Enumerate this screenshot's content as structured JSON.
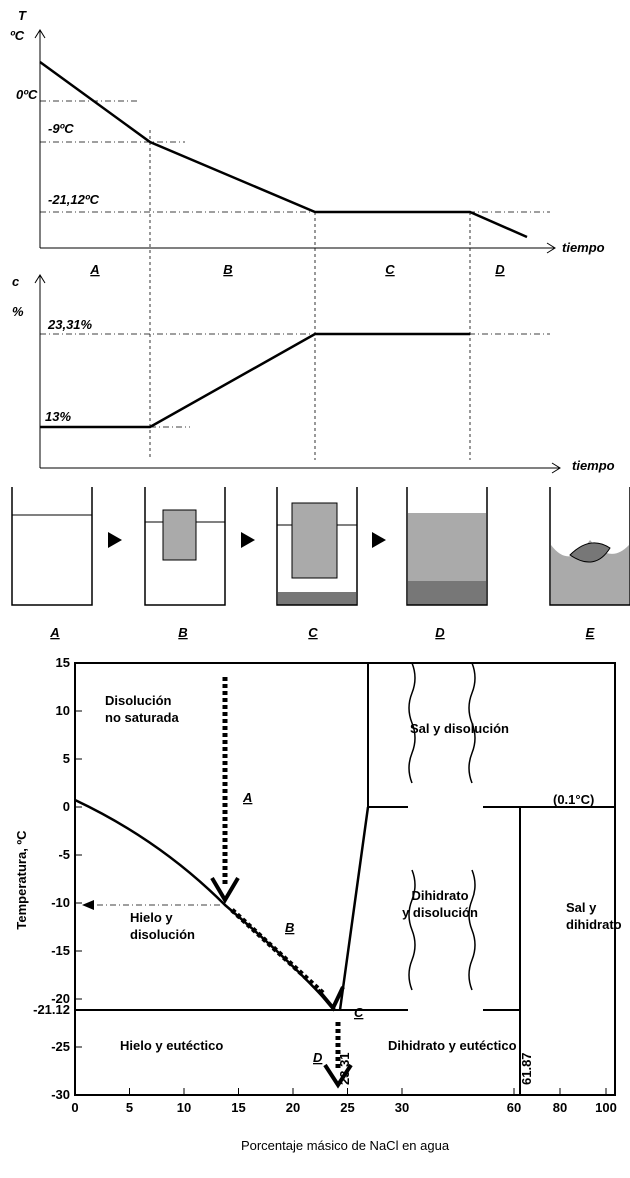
{
  "top_chart": {
    "y_label": "T",
    "y_unit": "ºC",
    "x_label": "tiempo",
    "levels": [
      "0ºC",
      "-9ºC",
      "-21,12ºC"
    ],
    "segments": [
      "A",
      "B",
      "C",
      "D"
    ]
  },
  "concentration_chart": {
    "y_label": "c",
    "y_unit": "%",
    "x_label": "tiempo",
    "levels": [
      "23,31%",
      "13%"
    ]
  },
  "beakers": {
    "labels": [
      "A",
      "B",
      "C",
      "D",
      "E"
    ]
  },
  "phase_diagram": {
    "y_title": "Temperatura, ºC",
    "x_title": "Porcentaje másico de NaCl en agua",
    "yticks": [
      15,
      10,
      5,
      0,
      -5,
      -10,
      -15,
      -20,
      -21.12,
      -25,
      -30
    ],
    "xticks": [
      0,
      5,
      10,
      15,
      20,
      25,
      30,
      60,
      80,
      100
    ],
    "regions": {
      "unsaturated": [
        "Disolución",
        "no saturada"
      ],
      "salt_solution": [
        "Sal y disolución"
      ],
      "transition": [
        "(0.1°C)"
      ],
      "dihydrate_solution": [
        "Dihidrato",
        "y disolución"
      ],
      "salt_dihydrate": [
        "Sal y",
        "dihidrato"
      ],
      "ice_solution": [
        "Hielo y",
        "disolución"
      ],
      "ice_eutectic": [
        "Hielo y eutéctico"
      ],
      "dihydrate_eutectic": [
        "Dihidrato y eutéctico"
      ]
    },
    "compositions": [
      "23.31",
      "61.87"
    ],
    "path_labels": [
      "A",
      "B",
      "C",
      "D"
    ]
  }
}
